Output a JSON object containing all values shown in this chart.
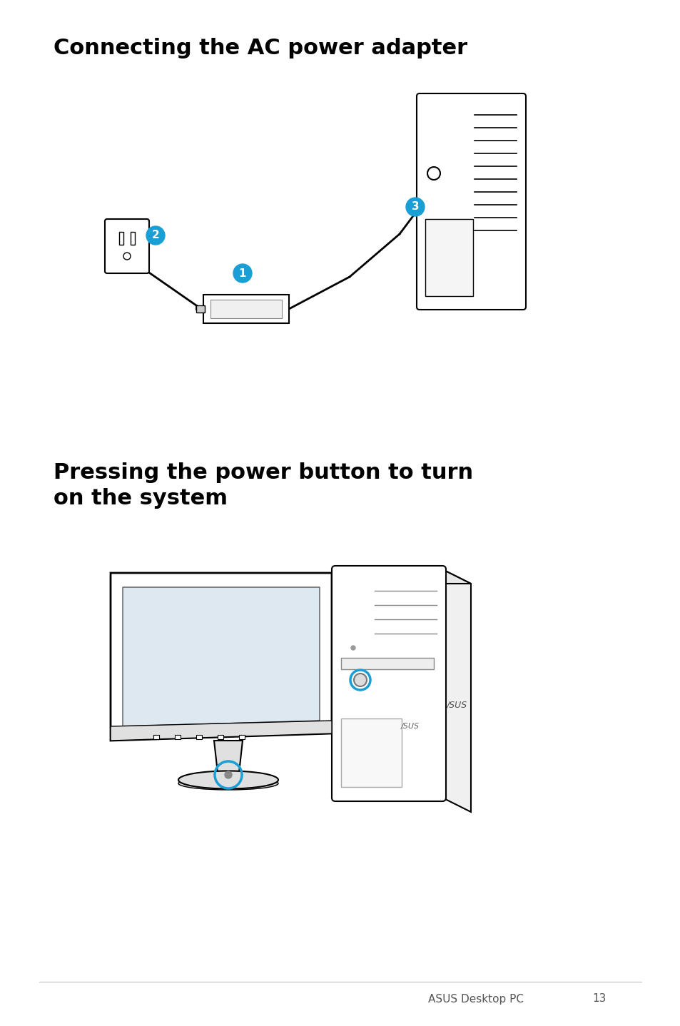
{
  "title1": "Connecting the AC power adapter",
  "title2": "Pressing the power button to turn\non the system",
  "footer_text": "ASUS Desktop PC",
  "page_number": "13",
  "bg_color": "#ffffff",
  "title_color": "#000000",
  "title_fontsize": 22,
  "footer_fontsize": 11,
  "badge_color": "#1a9fd4",
  "badge_text_color": "#ffffff",
  "line_color": "#cccccc"
}
